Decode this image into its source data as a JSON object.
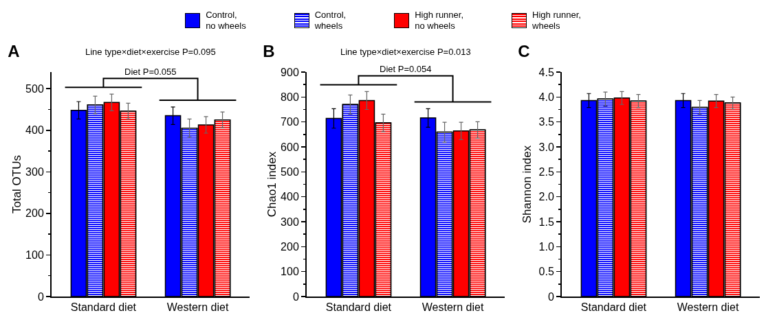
{
  "chart_data": [
    {
      "type": "bar",
      "title": "A",
      "ylabel": "Total OTUs",
      "categories": [
        "Standard diet",
        "Western diet"
      ],
      "legend": "top",
      "annotations": [
        "Line type×diet×exercise P=0.095",
        "Diet P=0.055"
      ],
      "series": [
        {
          "name": "Control,\nno wheels",
          "color": "#0000ff",
          "values": [
            448,
            435
          ],
          "errors": [
            21,
            21
          ]
        },
        {
          "name": "Control,\nwheels",
          "color": "#0000ff",
          "values": [
            461,
            405
          ],
          "errors": [
            21,
            22
          ]
        },
        {
          "name": "High runner,\nno wheels",
          "color": "#ff0000",
          "values": [
            467,
            413
          ],
          "errors": [
            20,
            20
          ]
        },
        {
          "name": "High runner,\nwheels",
          "color": "#ff0000",
          "values": [
            446,
            425
          ],
          "errors": [
            19,
            19
          ]
        }
      ],
      "ylim": [
        0,
        540
      ],
      "yticks": [
        0,
        100,
        200,
        300,
        400,
        500
      ],
      "grid": false
    },
    {
      "type": "bar",
      "title": "B",
      "ylabel": "Chao1 index",
      "categories": [
        "Standard diet",
        "Western diet"
      ],
      "annotations": [
        "Line type×diet×exercise P=0.013",
        "Diet P=0.054"
      ],
      "series": [
        {
          "color": "#0000ff",
          "values": [
            714,
            716
          ],
          "errors": [
            39,
            37
          ]
        },
        {
          "color": "#0000ff",
          "values": [
            770,
            659
          ],
          "errors": [
            38,
            40
          ]
        },
        {
          "color": "#ff0000",
          "values": [
            786,
            664
          ],
          "errors": [
            36,
            35
          ]
        },
        {
          "color": "#ff0000",
          "values": [
            696,
            668
          ],
          "errors": [
            35,
            33
          ]
        }
      ],
      "ylim": [
        0,
        900
      ],
      "yticks": [
        0,
        100,
        200,
        300,
        400,
        500,
        600,
        700,
        800,
        900
      ],
      "grid": false
    },
    {
      "type": "bar",
      "title": "C",
      "ylabel": "Shannon index",
      "categories": [
        "Standard diet",
        "Western diet"
      ],
      "series": [
        {
          "color": "#0000ff",
          "values": [
            3.93,
            3.93
          ],
          "errors": [
            0.14,
            0.14
          ]
        },
        {
          "color": "#0000ff",
          "values": [
            3.96,
            3.79
          ],
          "errors": [
            0.14,
            0.14
          ]
        },
        {
          "color": "#ff0000",
          "values": [
            3.98,
            3.92
          ],
          "errors": [
            0.13,
            0.13
          ]
        },
        {
          "color": "#ff0000",
          "values": [
            3.92,
            3.88
          ],
          "errors": [
            0.13,
            0.12
          ]
        }
      ],
      "ylim": [
        0,
        4.5
      ],
      "yticks": [
        {
          "value": 0,
          "label": "0"
        },
        {
          "value": 0.5,
          "label": "0.5"
        },
        {
          "value": 1,
          "label": "1.0"
        },
        {
          "value": 1.5,
          "label": "1.5"
        },
        {
          "value": 2,
          "label": "2.0"
        },
        {
          "value": 2.5,
          "label": "2.5"
        },
        {
          "value": 3,
          "label": "3.0"
        },
        {
          "value": 3.5,
          "label": "3.5"
        },
        {
          "value": 4,
          "label": "4.0"
        },
        {
          "value": 4.5,
          "label": "4.5"
        }
      ],
      "grid": false
    }
  ]
}
